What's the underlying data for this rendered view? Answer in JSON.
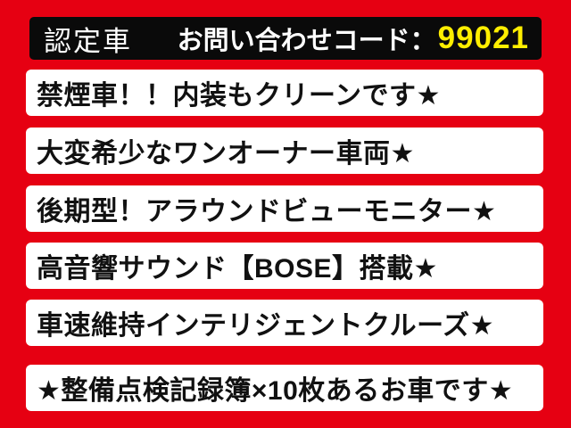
{
  "colors": {
    "background_red": "#e60012",
    "header_bar_black": "#0a0a0a",
    "row_white": "#ffffff",
    "text_black": "#111111",
    "text_white": "#ffffff",
    "code_yellow": "#ffee00"
  },
  "header": {
    "badge_label": "認定車",
    "inquiry_label": "お問い合わせコード：",
    "inquiry_code": "99021"
  },
  "rows": [
    {
      "text": "禁煙車！！内装もクリーンです★"
    },
    {
      "text": "大変希少なワンオーナー車両★"
    },
    {
      "text": "後期型！アラウンドビューモニター★"
    },
    {
      "text": "高音響サウンド【BOSE】搭載★"
    },
    {
      "text": "車速維持インテリジェントクルーズ★"
    },
    {
      "text": "★整備点検記録簿×10枚あるお車です★"
    }
  ]
}
